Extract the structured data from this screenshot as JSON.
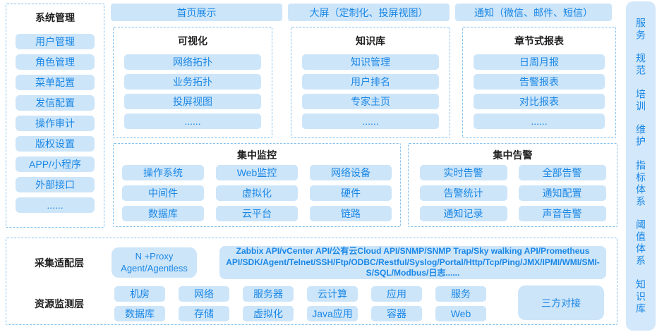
{
  "colors": {
    "accent_text": "#1987e6",
    "block_fill": "#cde5f9",
    "dashed_border": "#85c1ee",
    "right_bar_fill": "#d3e8fa",
    "title_text": "#1f1f1f"
  },
  "sidebar_left": {
    "title": "系统管理",
    "items": [
      "用户管理",
      "角色管理",
      "菜单配置",
      "发信配置",
      "操作审计",
      "版权设置",
      "APP/小程序",
      "外部接口",
      "......"
    ]
  },
  "top_row": [
    "首页展示",
    "大屏（定制化、投屏视图）",
    "通知（微信、邮件、短信）"
  ],
  "panels": [
    {
      "title": "可视化",
      "items": [
        "网络拓扑",
        "业务拓扑",
        "投屏视图",
        "......"
      ]
    },
    {
      "title": "知识库",
      "items": [
        "知识管理",
        "用户排名",
        "专家主页",
        "......"
      ]
    },
    {
      "title": "章节式报表",
      "items": [
        "日周月报",
        "告警报表",
        "对比报表",
        "......"
      ]
    }
  ],
  "monitor": {
    "title": "集中监控",
    "items": [
      "操作系统",
      "Web监控",
      "网络设备",
      "中间件",
      "虚拟化",
      "硬件",
      "数据库",
      "云平台",
      "链路"
    ]
  },
  "alert": {
    "title": "集中告警",
    "items": [
      "实时告警",
      "全部告警",
      "告警统计",
      "通知配置",
      "通知记录",
      "声音告警"
    ]
  },
  "bottom": {
    "collect_label": "采集适配层",
    "resource_label": "资源监测层",
    "proxy_line1": "N +Proxy",
    "proxy_line2": "Agent/Agentless",
    "api_text": "Zabbix API/vCenter API/公有云Cloud API/SNMP/SNMP Trap/Sky walking API/Prometheus API/SDK/Agent/Telnet/SSH/Ftp/ODBC/Restful/Syslog/Portal/Http/Tcp/Ping/JMX/IPMI/WMI/SMI-S/SQL/Modbus/日志......",
    "resources_row1": [
      "机房",
      "网络",
      "服务器",
      "云计算",
      "应用",
      "服务"
    ],
    "resources_row2": [
      "数据库",
      "存储",
      "虚拟化",
      "Java应用",
      "容器",
      "Web"
    ],
    "third_party": "三方对接"
  },
  "sidebar_right": {
    "items": [
      "服务",
      "规范",
      "培训",
      "维护",
      "指标体系",
      "阈值体系",
      "知识库"
    ]
  }
}
